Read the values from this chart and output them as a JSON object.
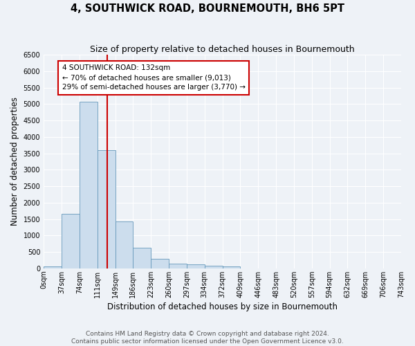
{
  "title": "4, SOUTHWICK ROAD, BOURNEMOUTH, BH6 5PT",
  "subtitle": "Size of property relative to detached houses in Bournemouth",
  "xlabel": "Distribution of detached houses by size in Bournemouth",
  "ylabel": "Number of detached properties",
  "bin_edges": [
    0,
    37,
    74,
    111,
    148,
    185,
    222,
    259,
    296,
    333,
    370,
    407,
    444,
    481,
    518,
    555,
    592,
    629,
    666,
    703,
    740
  ],
  "bin_counts": [
    60,
    1650,
    5080,
    3590,
    1420,
    620,
    300,
    150,
    130,
    80,
    50,
    0,
    0,
    0,
    0,
    0,
    0,
    0,
    0,
    0
  ],
  "tick_labels": [
    "0sqm",
    "37sqm",
    "74sqm",
    "111sqm",
    "149sqm",
    "186sqm",
    "223sqm",
    "260sqm",
    "297sqm",
    "334sqm",
    "372sqm",
    "409sqm",
    "446sqm",
    "483sqm",
    "520sqm",
    "557sqm",
    "594sqm",
    "632sqm",
    "669sqm",
    "706sqm",
    "743sqm"
  ],
  "bar_color": "#ccdded",
  "bar_edge_color": "#6699bb",
  "vline_x": 132,
  "vline_color": "#cc0000",
  "annotation_title": "4 SOUTHWICK ROAD: 132sqm",
  "annotation_line1": "← 70% of detached houses are smaller (9,013)",
  "annotation_line2": "29% of semi-detached houses are larger (3,770) →",
  "annotation_box_color": "#ffffff",
  "annotation_box_edge": "#cc0000",
  "ylim": [
    0,
    6500
  ],
  "yticks": [
    0,
    500,
    1000,
    1500,
    2000,
    2500,
    3000,
    3500,
    4000,
    4500,
    5000,
    5500,
    6000,
    6500
  ],
  "footer1": "Contains HM Land Registry data © Crown copyright and database right 2024.",
  "footer2": "Contains public sector information licensed under the Open Government Licence v3.0.",
  "background_color": "#eef2f7",
  "grid_color": "#ffffff",
  "title_fontsize": 10.5,
  "subtitle_fontsize": 9,
  "axis_label_fontsize": 8.5,
  "tick_fontsize": 7,
  "footer_fontsize": 6.5
}
